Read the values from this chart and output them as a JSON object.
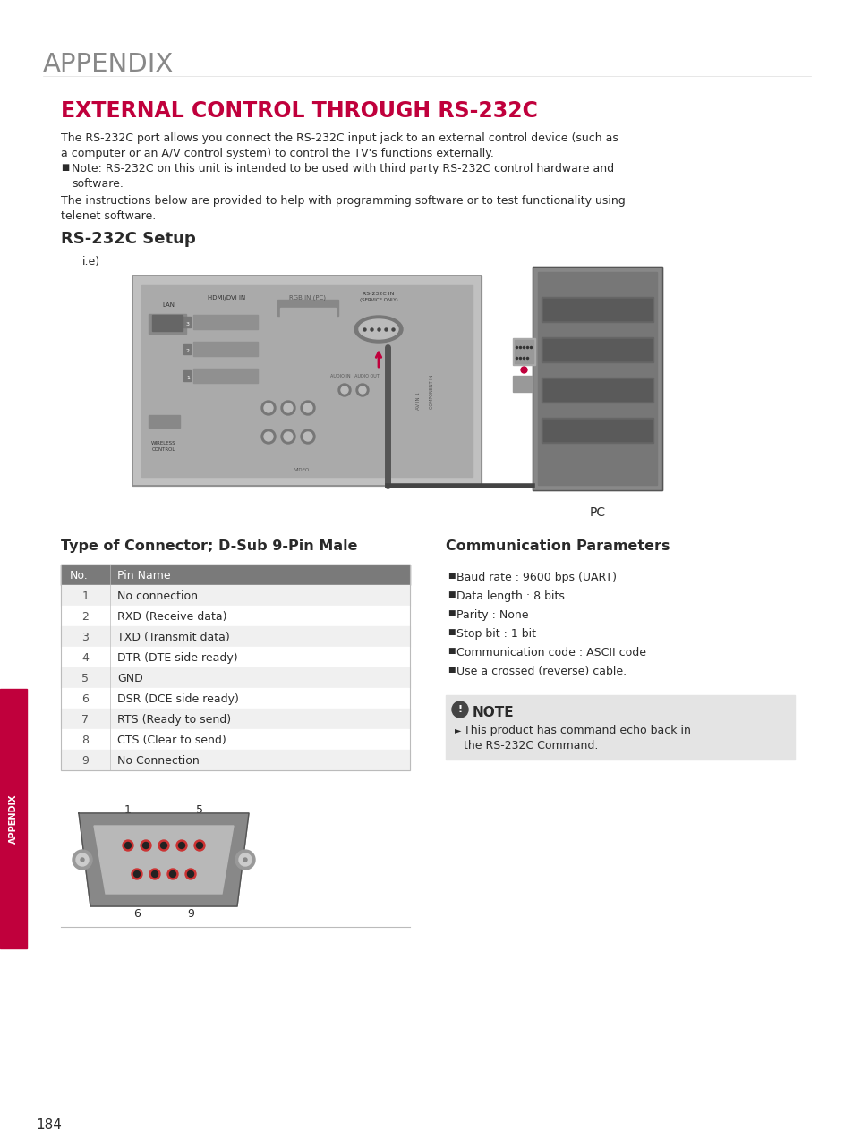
{
  "bg_color": "#ffffff",
  "appendix_title": "APPENDIX",
  "main_title": "EXTERNAL CONTROL THROUGH RS-232C",
  "para1a": "The RS-232C port allows you connect the RS-232C input jack to an external control device (such as",
  "para1b": "a computer or an A/V control system) to control the TV's functions externally.",
  "bullet1a": "  Note: RS-232C on this unit is intended to be used with third party RS-232C control hardware and",
  "bullet1b": "  software.",
  "para2a": "The instructions below are provided to help with programming software or to test functionality using",
  "para2b": "telenet software.",
  "section_title": "RS-232C Setup",
  "ie_label": "i.e)",
  "connector_title": "Type of Connector; D-Sub 9-Pin Male",
  "comm_title": "Communication Parameters",
  "table_header_no": "No.",
  "table_header_pin": "Pin Name",
  "table_header_bg": "#7a7a7a",
  "table_header_color": "#ffffff",
  "table_rows": [
    [
      "1",
      "No connection"
    ],
    [
      "2",
      "RXD (Receive data)"
    ],
    [
      "3",
      "TXD (Transmit data)"
    ],
    [
      "4",
      "DTR (DTE side ready)"
    ],
    [
      "5",
      "GND"
    ],
    [
      "6",
      "DSR (DCE side ready)"
    ],
    [
      "7",
      "RTS (Ready to send)"
    ],
    [
      "8",
      "CTS (Clear to send)"
    ],
    [
      "9",
      "No Connection"
    ]
  ],
  "comm_params": [
    "Baud rate : 9600 bps (UART)",
    "Data length : 8 bits",
    "Parity : None",
    "Stop bit : 1 bit",
    "Communication code : ASCII code",
    "Use a crossed (reverse) cable."
  ],
  "note_title": "NOTE",
  "note_text1": "This product has command echo back in",
  "note_text2": "the RS-232C Command.",
  "page_number": "184",
  "sidebar_text": "APPENDIX",
  "sidebar_color": "#c0003c",
  "red_color": "#c0003c",
  "gray_color": "#888888",
  "dark_color": "#2a2a2a",
  "mid_gray": "#555555",
  "light_gray": "#e8e8e8",
  "note_bg": "#e4e4e4",
  "table_alt_bg": "#f0f0f0"
}
